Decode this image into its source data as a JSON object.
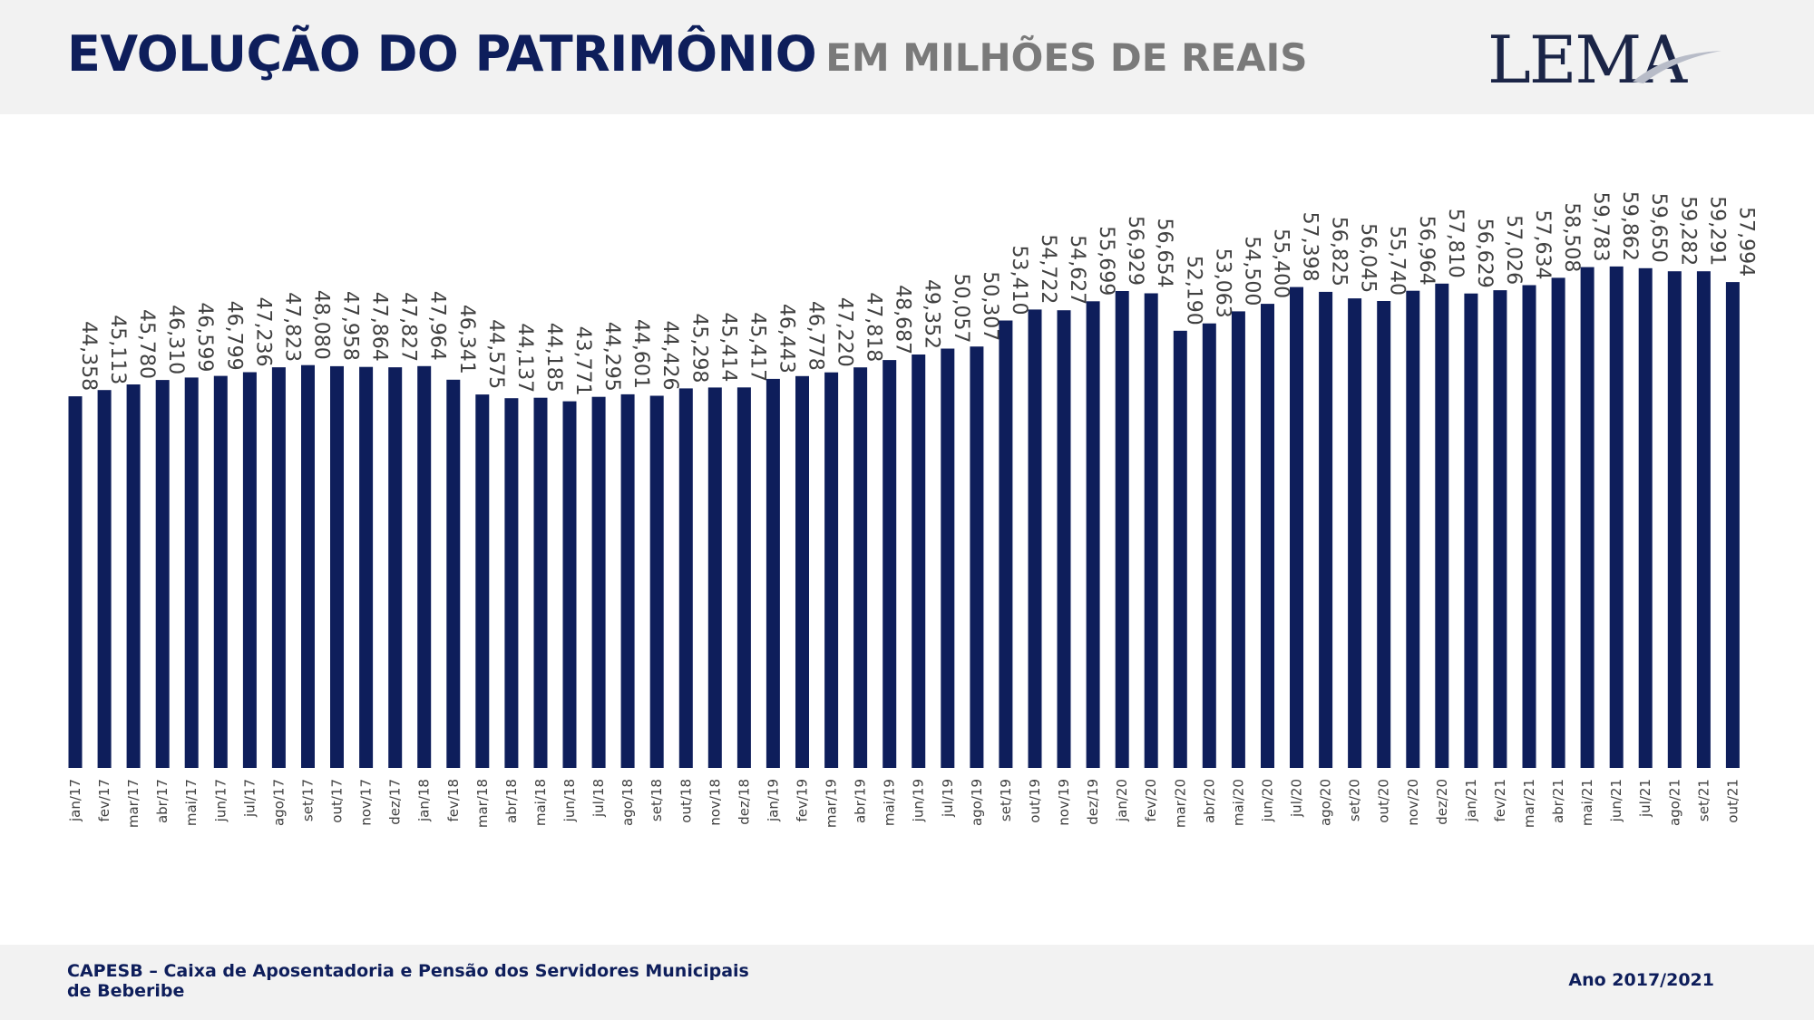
{
  "header": {
    "title_main": "EVOLUÇÃO DO PATRIMÔNIO",
    "title_sub": "EM MILHÕES DE REAIS",
    "logo_text": "LEMA"
  },
  "footer": {
    "left": "CAPESB – Caixa de Aposentadoria e Pensão dos Servidores Municipais de Beberibe",
    "right": "Ano 2017/2021"
  },
  "colors": {
    "bar": "#0e1e5b",
    "label": "#404040",
    "title": "#0e1e5b",
    "subtitle": "#7a7a7a"
  },
  "chart_data": {
    "type": "bar",
    "title": "EVOLUÇÃO DO PATRIMÔNIO EM MILHÕES DE REAIS",
    "ylim": [
      0,
      60
    ],
    "grid": false,
    "legend": "none",
    "categories": [
      "jan/17",
      "fev/17",
      "mar/17",
      "abr/17",
      "mai/17",
      "jun/17",
      "jul/17",
      "ago/17",
      "set/17",
      "out/17",
      "nov/17",
      "dez/17",
      "jan/18",
      "fev/18",
      "mar/18",
      "abr/18",
      "mai/18",
      "jun/18",
      "jul/18",
      "ago/18",
      "set/18",
      "out/18",
      "nov/18",
      "dez/18",
      "jan/19",
      "fev/19",
      "mar/19",
      "abr/19",
      "mai/19",
      "jun/19",
      "jul/19",
      "ago/19",
      "set/19",
      "out/19",
      "nov/19",
      "dez/19",
      "jan/20",
      "fev/20",
      "mar/20",
      "abr/20",
      "mai/20",
      "jun/20",
      "jul/20",
      "ago/20",
      "set/20",
      "out/20",
      "nov/20",
      "dez/20",
      "jan/21",
      "fev/21",
      "mar/21",
      "abr/21",
      "mai/21",
      "jun/21",
      "jul/21",
      "ago/21",
      "set/21",
      "out/21"
    ],
    "values": [
      44.358,
      45.113,
      45.78,
      46.31,
      46.599,
      46.799,
      47.236,
      47.823,
      48.08,
      47.958,
      47.864,
      47.827,
      47.964,
      46.341,
      44.575,
      44.137,
      44.185,
      43.771,
      44.295,
      44.601,
      44.426,
      45.298,
      45.414,
      45.417,
      46.443,
      46.778,
      47.22,
      47.818,
      48.687,
      49.352,
      50.057,
      50.307,
      53.41,
      54.722,
      54.627,
      55.699,
      56.929,
      56.654,
      52.19,
      53.063,
      54.5,
      55.4,
      57.398,
      56.825,
      56.045,
      55.74,
      56.964,
      57.81,
      56.629,
      57.026,
      57.634,
      58.508,
      59.783,
      59.862,
      59.65,
      59.282,
      59.291,
      57.994
    ],
    "labels": [
      "44,358",
      "45,113",
      "45,780",
      "46,310",
      "46,599",
      "46,799",
      "47,236",
      "47,823",
      "48,080",
      "47,958",
      "47,864",
      "47,827",
      "47,964",
      "46,341",
      "44,575",
      "44,137",
      "44,185",
      "43,771",
      "44,295",
      "44,601",
      "44,426",
      "45,298",
      "45,414",
      "45,417",
      "46,443",
      "46,778",
      "47,220",
      "47,818",
      "48,687",
      "49,352",
      "50,057",
      "50,307",
      "53,410",
      "54,722",
      "54,627",
      "55,699",
      "56,929",
      "56,654",
      "52,190",
      "53,063",
      "54,500",
      "55,400",
      "57,398",
      "56,825",
      "56,045",
      "55,740",
      "56,964",
      "57,810",
      "56,629",
      "57,026",
      "57,634",
      "58,508",
      "59,783",
      "59,862",
      "59,650",
      "59,282",
      "59,291",
      "57,994"
    ]
  }
}
